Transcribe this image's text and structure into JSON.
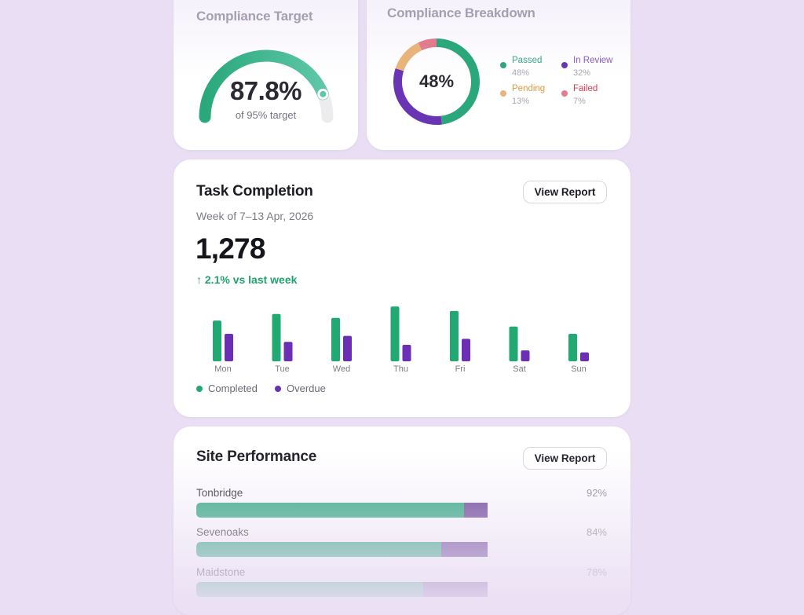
{
  "compliance_target": {
    "title": "Compliance Target",
    "value": "87.8%",
    "subtitle": "of 95% target",
    "progress_fraction": 0.878,
    "colors": {
      "start": "#2aa87c",
      "end": "#5ec7a7",
      "track": "#ececef"
    }
  },
  "compliance_breakdown": {
    "title": "Compliance Breakdown",
    "center_value": "48%",
    "segments": [
      {
        "name": "Passed",
        "pct": "48%",
        "value": 48,
        "color": "#2aa87c",
        "text_color": "#3aa886"
      },
      {
        "name": "In Review",
        "pct": "32%",
        "value": 32,
        "color": "#6a35b5",
        "text_color": "#8a5cc4"
      },
      {
        "name": "Pending",
        "pct": "13%",
        "value": 13,
        "color": "#e9b47a",
        "text_color": "#e29a43"
      },
      {
        "name": "Failed",
        "pct": "7%",
        "value": 7,
        "color": "#e27b8d",
        "text_color": "#d63c55"
      }
    ]
  },
  "task_completion": {
    "title": "Task Completion",
    "button_label": "View Report",
    "subtitle": "Week of 7–13 Apr, 2026",
    "total": "1,278",
    "trend": "↑ 2.1% vs last week",
    "legend": [
      {
        "label": "Completed",
        "color": "#21a873"
      },
      {
        "label": "Overdue",
        "color": "#6b2fb3"
      }
    ]
  },
  "chart_data": {
    "type": "bar",
    "categories": [
      "Mon",
      "Tue",
      "Wed",
      "Thu",
      "Fri",
      "Sat",
      "Sun"
    ],
    "series": [
      {
        "name": "Completed",
        "values": [
          205,
          238,
          218,
          275,
          253,
          175,
          138
        ]
      },
      {
        "name": "Overdue",
        "values": [
          138,
          98,
          128,
          83,
          113,
          55,
          45
        ]
      }
    ],
    "ylim": [
      0,
      300
    ],
    "grid": false,
    "legend_position": "bottom-left"
  },
  "site_performance": {
    "title": "Site Performance",
    "button_label": "View Report",
    "sites": [
      {
        "name": "Tonbridge",
        "pct": "92%",
        "value": 0.92
      },
      {
        "name": "Sevenoaks",
        "pct": "84%",
        "value": 0.84
      },
      {
        "name": "Maidstone",
        "pct": "78%",
        "value": 0.78
      }
    ],
    "colors": {
      "fill": "#2aa87c",
      "remainder": "#6a4195"
    }
  }
}
